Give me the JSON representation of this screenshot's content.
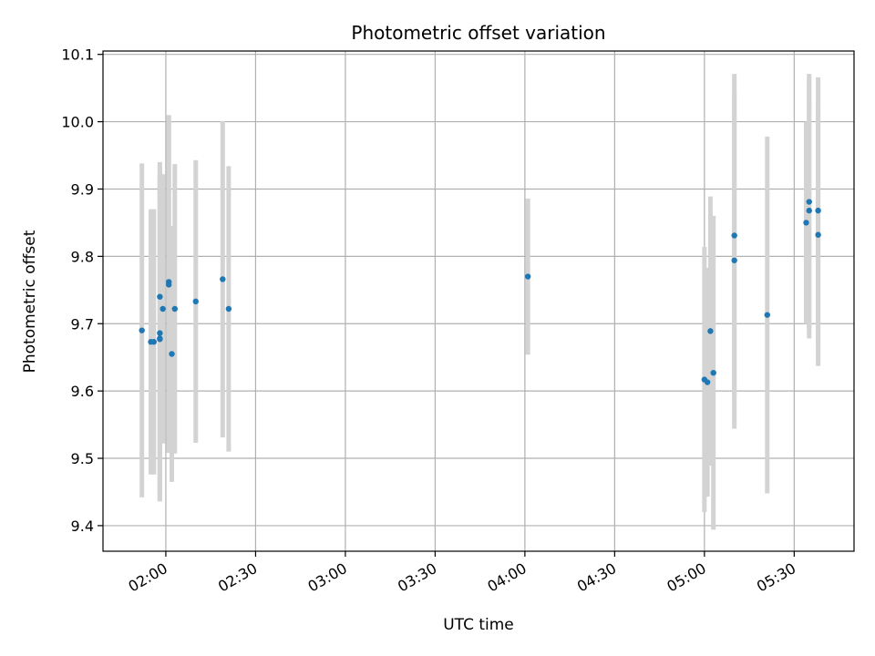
{
  "chart_data": {
    "type": "scatter",
    "title": "Photometric offset variation",
    "xlabel": "UTC time",
    "ylabel": "Photometric offset",
    "grid": true,
    "x_ticks": [
      "02:00",
      "02:30",
      "03:00",
      "03:30",
      "04:00",
      "04:30",
      "05:00",
      "05:30"
    ],
    "y_ticks": [
      "9.4",
      "9.5",
      "9.6",
      "9.7",
      "9.8",
      "9.9",
      "10.0",
      "10.1"
    ],
    "xlim": [
      "01:39",
      "05:50"
    ],
    "ylim": [
      9.362,
      10.105
    ],
    "colors": {
      "point": "#1f77b4",
      "errorbar": "#d3d3d3",
      "grid": "#b0b0b0"
    },
    "points": [
      {
        "x": "01:52",
        "y": 9.69,
        "err": 0.248
      },
      {
        "x": "01:56",
        "y": 9.673,
        "err": 0.197
      },
      {
        "x": "01:55",
        "y": 9.673,
        "err": 0.197
      },
      {
        "x": "01:58",
        "y": 9.686,
        "err": 0.25
      },
      {
        "x": "01:58",
        "y": 9.678,
        "err": 0.24
      },
      {
        "x": "01:58",
        "y": 9.677,
        "err": 0.24
      },
      {
        "x": "01:58",
        "y": 9.74,
        "err": 0.2
      },
      {
        "x": "01:59",
        "y": 9.722,
        "err": 0.2
      },
      {
        "x": "02:01",
        "y": 9.762,
        "err": 0.248
      },
      {
        "x": "02:01",
        "y": 9.758,
        "err": 0.25
      },
      {
        "x": "02:02",
        "y": 9.655,
        "err": 0.19
      },
      {
        "x": "02:03",
        "y": 9.722,
        "err": 0.215
      },
      {
        "x": "02:10",
        "y": 9.733,
        "err": 0.21
      },
      {
        "x": "02:19",
        "y": 9.766,
        "err": 0.235
      },
      {
        "x": "02:21",
        "y": 9.722,
        "err": 0.212
      },
      {
        "x": "04:01",
        "y": 9.77,
        "err": 0.116
      },
      {
        "x": "05:00",
        "y": 9.617,
        "err": 0.197
      },
      {
        "x": "05:01",
        "y": 9.613,
        "err": 0.17
      },
      {
        "x": "05:02",
        "y": 9.689,
        "err": 0.2
      },
      {
        "x": "05:03",
        "y": 9.627,
        "err": 0.233
      },
      {
        "x": "05:10",
        "y": 9.794,
        "err": 0.25
      },
      {
        "x": "05:10",
        "y": 9.831,
        "err": 0.24
      },
      {
        "x": "05:21",
        "y": 9.713,
        "err": 0.265
      },
      {
        "x": "05:34",
        "y": 9.85,
        "err": 0.15
      },
      {
        "x": "05:35",
        "y": 9.881,
        "err": 0.19
      },
      {
        "x": "05:35",
        "y": 9.868,
        "err": 0.19
      },
      {
        "x": "05:38",
        "y": 9.832,
        "err": 0.195
      },
      {
        "x": "05:38",
        "y": 9.868,
        "err": 0.198
      }
    ]
  }
}
